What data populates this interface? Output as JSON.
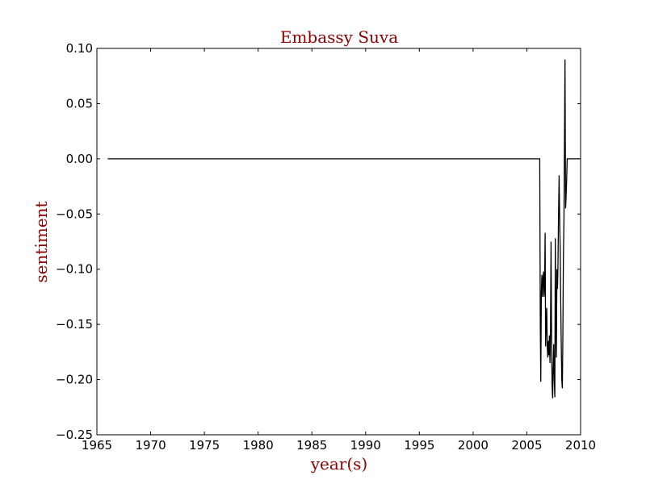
{
  "chart_data": {
    "type": "line",
    "title": "Embassy Suva",
    "xlabel": "year(s)",
    "ylabel": "sentiment",
    "xlim": [
      1965,
      2010
    ],
    "ylim": [
      -0.25,
      0.1
    ],
    "xticks": [
      1965,
      1970,
      1975,
      1980,
      1985,
      1990,
      1995,
      2000,
      2005,
      2010
    ],
    "xtick_labels": [
      "1965",
      "1970",
      "1975",
      "1980",
      "1985",
      "1990",
      "1995",
      "2000",
      "2005",
      "2010"
    ],
    "yticks": [
      0.1,
      0.05,
      0.0,
      -0.05,
      -0.1,
      -0.15,
      -0.2,
      -0.25
    ],
    "ytick_labels": [
      "0.10",
      "0.05",
      "0.00",
      "−0.05",
      "−0.10",
      "−0.15",
      "−0.20",
      "−0.25"
    ],
    "grid": false,
    "line_color": "#000000",
    "text_color": "#8b0000",
    "series": [
      {
        "x": [
          1966.0,
          2006.2,
          2006.25,
          2006.3,
          2006.35,
          2006.4,
          2006.45,
          2006.5,
          2006.55,
          2006.6,
          2006.65,
          2006.7,
          2006.75,
          2006.8,
          2006.85,
          2006.9,
          2006.95,
          2007.0,
          2007.05,
          2007.1,
          2007.15,
          2007.2,
          2007.25,
          2007.3,
          2007.35,
          2007.4,
          2007.45,
          2007.5,
          2007.55,
          2007.6,
          2007.65,
          2007.7,
          2007.75,
          2007.8,
          2007.85,
          2007.9,
          2007.95,
          2008.0,
          2008.05,
          2008.1,
          2008.15,
          2008.2,
          2008.25,
          2008.3,
          2008.35,
          2008.4,
          2008.45,
          2008.5,
          2008.55,
          2008.6,
          2008.65,
          2008.7,
          2008.75,
          2008.8,
          2008.85,
          2008.9,
          2008.95,
          2009.0,
          2009.05,
          2009.1,
          2009.15,
          2009.2,
          2009.25,
          2009.3,
          2009.35,
          2009.4,
          2009.45,
          2009.5,
          2009.55,
          2009.6,
          2009.65,
          2009.7,
          2009.75,
          2009.8,
          2009.85,
          2009.9
        ],
        "y": [
          0.0,
          0.0,
          -0.15,
          -0.202,
          -0.12,
          -0.105,
          -0.125,
          -0.11,
          -0.102,
          -0.125,
          -0.115,
          -0.067,
          -0.17,
          -0.15,
          -0.135,
          -0.17,
          -0.18,
          -0.165,
          -0.178,
          -0.16,
          -0.185,
          -0.16,
          -0.075,
          -0.165,
          -0.205,
          -0.217,
          -0.185,
          -0.168,
          -0.2,
          -0.216,
          -0.072,
          -0.15,
          -0.18,
          -0.1,
          -0.118,
          -0.095,
          -0.05,
          -0.015,
          -0.05,
          -0.08,
          -0.13,
          -0.165,
          -0.2,
          -0.208,
          -0.165,
          -0.09,
          -0.055,
          0.01,
          0.09,
          -0.045,
          -0.035,
          -0.02,
          0.0,
          0.0,
          0.0,
          0.0,
          0.0,
          0.0,
          0.0,
          0.0,
          0.0,
          0.0,
          0.0,
          0.0,
          0.0,
          0.0,
          0.0,
          0.0,
          0.0,
          0.0,
          0.0,
          0.0,
          0.0,
          0.0,
          0.0,
          0.0
        ]
      }
    ]
  }
}
